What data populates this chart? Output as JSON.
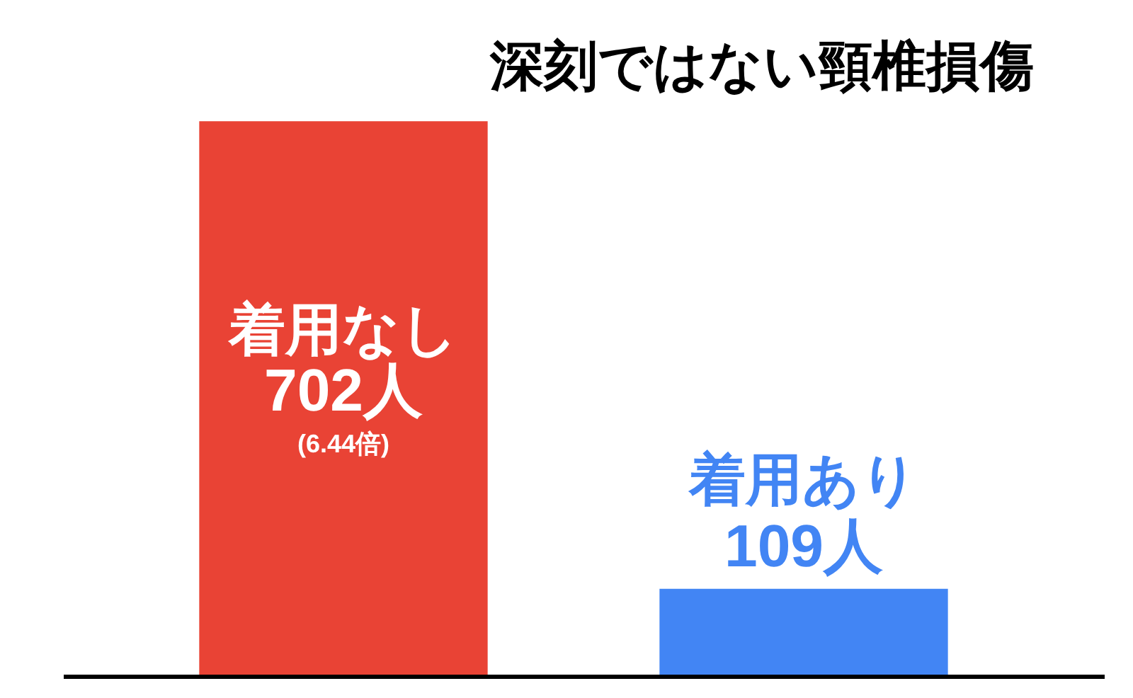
{
  "chart_data": {
    "type": "bar",
    "title": "深刻ではない頸椎損傷",
    "categories": [
      "着用なし",
      "着用あり"
    ],
    "values": [
      702,
      109
    ],
    "colors": [
      "#e94335",
      "#4285f4"
    ],
    "value_labels": [
      "702人",
      "109人"
    ],
    "annotations": [
      "(6.44倍)"
    ]
  }
}
